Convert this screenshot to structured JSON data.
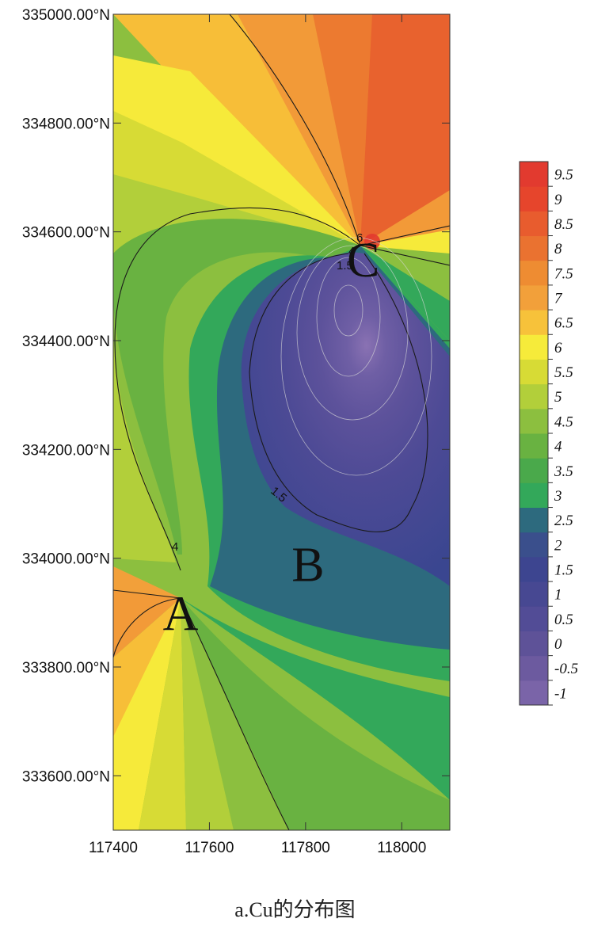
{
  "caption": "a.Cu的分布图",
  "chart_data": {
    "type": "heatmap",
    "title": "",
    "xlabel": "",
    "ylabel": "",
    "xlim": [
      117400,
      118100
    ],
    "ylim": [
      333500,
      335000
    ],
    "x_ticks": [
      117400,
      117600,
      117800,
      118000
    ],
    "x_tick_labels": [
      "117400",
      "117600",
      "117800",
      "118000"
    ],
    "y_ticks": [
      333600,
      333800,
      334000,
      334200,
      334400,
      334600,
      334800,
      335000
    ],
    "y_tick_labels": [
      "333600.00°N",
      "333800.00°N",
      "334000.00°N",
      "334200.00°N",
      "334400.00°N",
      "334600.00°N",
      "334800.00°N",
      "335000.00°N"
    ],
    "colorbar": {
      "levels": [
        -1,
        -0.5,
        0,
        0.5,
        1,
        1.5,
        2,
        2.5,
        3,
        3.5,
        4,
        4.5,
        5,
        5.5,
        6,
        6.5,
        7,
        7.5,
        8,
        8.5,
        9,
        9.5
      ],
      "labels": [
        "-1",
        "-0.5",
        "0",
        "0.5",
        "1",
        "1.5",
        "2",
        "2.5",
        "3",
        "3.5",
        "4",
        "4.5",
        "5",
        "5.5",
        "6",
        "6.5",
        "7",
        "7.5",
        "8",
        "8.5",
        "9",
        "9.5"
      ],
      "colors": [
        "#7a64a8",
        "#6c5a9f",
        "#5e5298",
        "#524c96",
        "#474892",
        "#3d4590",
        "#3a4f8c",
        "#2d6a7e",
        "#33a85a",
        "#4aa94b",
        "#69b241",
        "#8cbf3f",
        "#b2cf3a",
        "#d7db35",
        "#f6eb3a",
        "#f7c23a",
        "#f2a03a",
        "#ee8c32",
        "#ea7230",
        "#e85c2e",
        "#e6452c",
        "#e23a2f"
      ]
    },
    "points": [
      {
        "label": "A",
        "x": 117540,
        "y": 333900
      },
      {
        "label": "B",
        "x": 117805,
        "y": 333990
      },
      {
        "label": "C",
        "x": 117920,
        "y": 334550
      }
    ],
    "contour_labels": [
      "4",
      "1.5",
      "1.5",
      "4",
      "6"
    ]
  }
}
